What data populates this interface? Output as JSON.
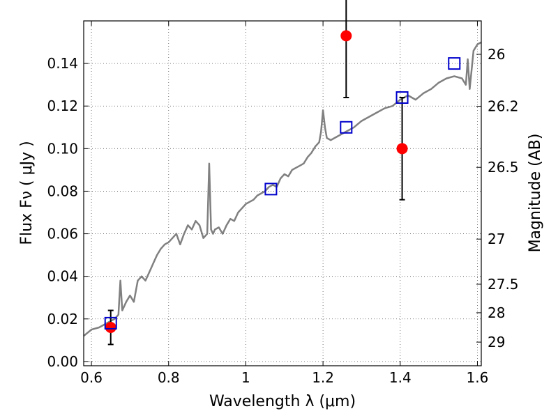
{
  "chart_data": {
    "type": "scatter",
    "xlabel": "Wavelength  λ (μm)",
    "ylabel": "Flux  Fν  ( μJy )",
    "ylabel_right": "Magnitude (AB)",
    "xlim": [
      0.58,
      1.61
    ],
    "ylim": [
      -0.002,
      0.16
    ],
    "grid": true,
    "x_ticks": [
      {
        "value": 0.6,
        "label": "0.6"
      },
      {
        "value": 0.8,
        "label": "0.8"
      },
      {
        "value": 1.0,
        "label": "1"
      },
      {
        "value": 1.2,
        "label": "1.2"
      },
      {
        "value": 1.4,
        "label": "1.4"
      },
      {
        "value": 1.6,
        "label": "1.6"
      }
    ],
    "y_ticks": [
      {
        "value": 0.0,
        "label": "0.00"
      },
      {
        "value": 0.02,
        "label": "0.02"
      },
      {
        "value": 0.04,
        "label": "0.04"
      },
      {
        "value": 0.06,
        "label": "0.06"
      },
      {
        "value": 0.08,
        "label": "0.08"
      },
      {
        "value": 0.1,
        "label": "0.10"
      },
      {
        "value": 0.12,
        "label": "0.12"
      },
      {
        "value": 0.14,
        "label": "0.14"
      }
    ],
    "right_ticks": [
      {
        "flux": 0.1443,
        "label": "26"
      },
      {
        "flux": 0.1199,
        "label": "26.2"
      },
      {
        "flux": 0.0912,
        "label": "26.5"
      },
      {
        "flux": 0.0575,
        "label": "27"
      },
      {
        "flux": 0.0363,
        "label": "27.5"
      },
      {
        "flux": 0.0229,
        "label": "28"
      },
      {
        "flux": 0.0091,
        "label": "29"
      }
    ],
    "series": [
      {
        "kind": "line",
        "color": "#808080",
        "x": [
          0.58,
          0.6,
          0.62,
          0.64,
          0.66,
          0.67,
          0.675,
          0.68,
          0.69,
          0.7,
          0.71,
          0.72,
          0.73,
          0.74,
          0.75,
          0.76,
          0.77,
          0.78,
          0.79,
          0.8,
          0.81,
          0.82,
          0.83,
          0.84,
          0.85,
          0.86,
          0.87,
          0.88,
          0.89,
          0.9,
          0.905,
          0.91,
          0.915,
          0.92,
          0.93,
          0.94,
          0.95,
          0.96,
          0.97,
          0.98,
          0.99,
          1.0,
          1.01,
          1.02,
          1.03,
          1.04,
          1.05,
          1.06,
          1.07,
          1.08,
          1.09,
          1.1,
          1.11,
          1.12,
          1.13,
          1.14,
          1.15,
          1.16,
          1.17,
          1.18,
          1.19,
          1.195,
          1.2,
          1.205,
          1.21,
          1.22,
          1.24,
          1.26,
          1.28,
          1.3,
          1.32,
          1.34,
          1.36,
          1.38,
          1.4,
          1.42,
          1.44,
          1.46,
          1.48,
          1.5,
          1.52,
          1.54,
          1.56,
          1.57,
          1.575,
          1.58,
          1.59,
          1.6,
          1.61
        ],
        "y": [
          0.012,
          0.015,
          0.016,
          0.018,
          0.02,
          0.022,
          0.038,
          0.024,
          0.028,
          0.031,
          0.028,
          0.038,
          0.04,
          0.038,
          0.042,
          0.046,
          0.05,
          0.053,
          0.055,
          0.056,
          0.058,
          0.06,
          0.055,
          0.06,
          0.064,
          0.062,
          0.066,
          0.064,
          0.058,
          0.06,
          0.093,
          0.062,
          0.06,
          0.062,
          0.063,
          0.06,
          0.064,
          0.067,
          0.066,
          0.07,
          0.072,
          0.074,
          0.075,
          0.076,
          0.078,
          0.079,
          0.08,
          0.082,
          0.083,
          0.082,
          0.086,
          0.088,
          0.087,
          0.09,
          0.091,
          0.092,
          0.093,
          0.096,
          0.098,
          0.101,
          0.103,
          0.108,
          0.118,
          0.11,
          0.105,
          0.104,
          0.106,
          0.108,
          0.11,
          0.113,
          0.115,
          0.117,
          0.119,
          0.12,
          0.123,
          0.125,
          0.123,
          0.126,
          0.128,
          0.131,
          0.133,
          0.134,
          0.133,
          0.13,
          0.142,
          0.128,
          0.146,
          0.149,
          0.15
        ]
      },
      {
        "kind": "points-with-errors",
        "color": "#ff0000",
        "x": [
          0.65,
          1.26,
          1.405
        ],
        "y": [
          0.016,
          0.153,
          0.1
        ],
        "yerr_low": [
          0.008,
          0.029,
          0.024
        ],
        "yerr_high": [
          0.008,
          0.02,
          0.024
        ]
      },
      {
        "kind": "model-squares",
        "color": "#0000cc",
        "x": [
          0.65,
          1.065,
          1.26,
          1.405,
          1.54
        ],
        "y": [
          0.018,
          0.081,
          0.11,
          0.124,
          0.14
        ]
      }
    ]
  }
}
